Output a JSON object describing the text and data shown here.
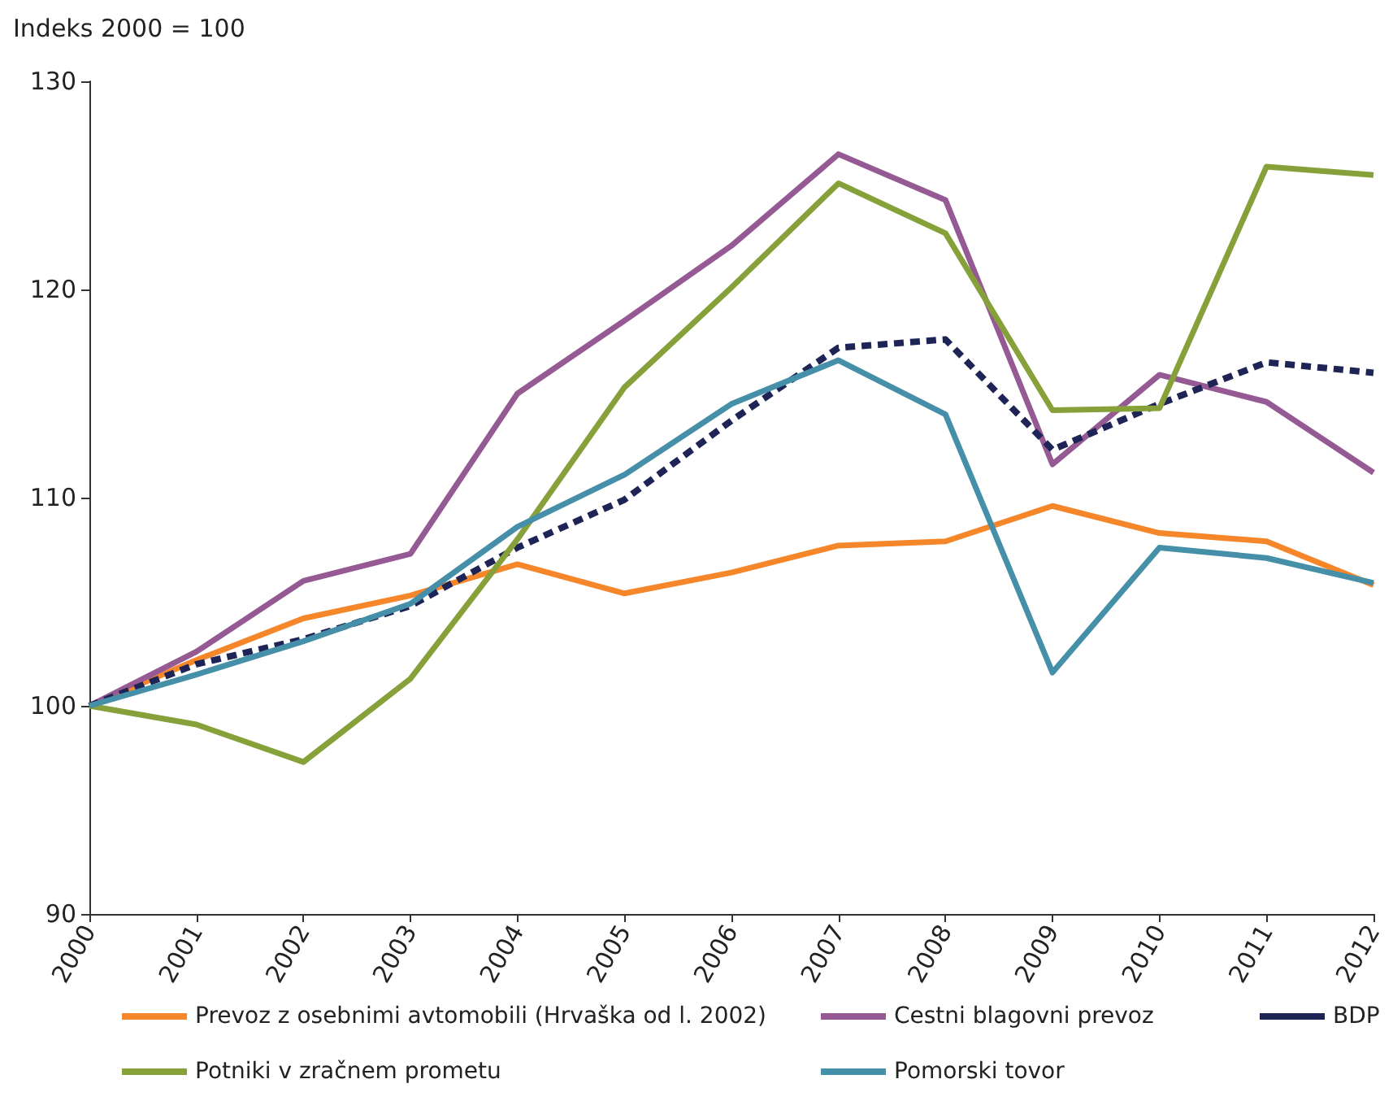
{
  "chart_data": {
    "type": "line",
    "ylabel": "Indeks 2000 = 100",
    "categories": [
      "2000",
      "2001",
      "2002",
      "2003",
      "2004",
      "2005",
      "2006",
      "2007",
      "2008",
      "2009",
      "2010",
      "2011",
      "2012"
    ],
    "ylim": [
      90,
      130
    ],
    "yticks": [
      90,
      100,
      110,
      120,
      130
    ],
    "grid": false,
    "legend": "bottom",
    "line_style": "solid",
    "marker": "none",
    "series": [
      {
        "name": "Prevoz z osebnimi avtomobili (Hrvaška od l. 2002)",
        "color": "#f5862a",
        "values": [
          100,
          102.2,
          104.2,
          105.3,
          106.8,
          105.4,
          106.4,
          107.7,
          107.9,
          109.6,
          108.3,
          107.9,
          105.8
        ]
      },
      {
        "name": "Cestni blagovni prevoz",
        "color": "#955a93",
        "values": [
          100,
          102.6,
          106.0,
          107.3,
          115.0,
          118.5,
          122.1,
          126.5,
          124.3,
          111.6,
          115.9,
          114.6,
          111.2
        ]
      },
      {
        "name": "BDP",
        "color": "#1f2456",
        "line_style": "dashed",
        "values": [
          100,
          102.0,
          103.2,
          104.8,
          107.6,
          109.9,
          113.7,
          117.2,
          117.6,
          112.3,
          114.5,
          116.5,
          116.0
        ]
      },
      {
        "name": "Potniki v zračnem prometu",
        "color": "#86a03a",
        "values": [
          100,
          99.1,
          97.3,
          101.3,
          108.0,
          115.3,
          120.1,
          125.1,
          122.7,
          114.2,
          114.3,
          125.9,
          125.5
        ]
      },
      {
        "name": "Pomorski tovor",
        "color": "#468fa8",
        "values": [
          100,
          101.5,
          103.1,
          104.9,
          108.6,
          111.1,
          114.5,
          116.6,
          114.0,
          101.6,
          107.6,
          107.1,
          105.9
        ]
      }
    ]
  }
}
